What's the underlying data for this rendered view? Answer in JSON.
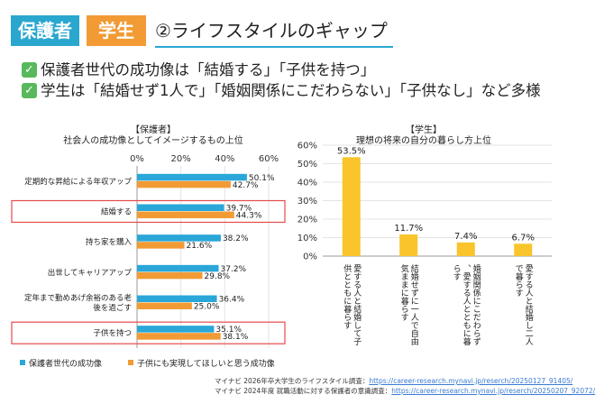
{
  "header": {
    "tag_parent": "保護者",
    "tag_student": "学生",
    "title": "②ライフスタイルのギャップ"
  },
  "bullets": [
    "保護者世代の成功像は「結婚する」「子供を持つ」",
    "学生は「結婚せず1人で」「婚姻関係にこだわらない」「子供なし」など多様"
  ],
  "chart_data": [
    {
      "type": "bar",
      "orientation": "horizontal",
      "label": "【保護者】",
      "title": "社会人の成功像としてイメージするもの上位",
      "xlim": [
        0,
        60
      ],
      "xticks": [
        "0%",
        "20%",
        "40%",
        "60%"
      ],
      "categories": [
        "定期的な昇給による年収アップ",
        "結婚する",
        "持ち家を購入",
        "出世してキャリアアップ",
        "定年まで勤めあげ余裕のある老後を過ごす",
        "子供を持つ"
      ],
      "highlighted": [
        "結婚する",
        "子供を持つ"
      ],
      "series": [
        {
          "name": "保護者世代の成功像",
          "color": "#2aa7d8",
          "values": [
            50.1,
            39.7,
            38.2,
            37.2,
            36.4,
            35.1
          ],
          "labels": [
            "50.1%",
            "39.7%",
            "38.2%",
            "37.2%",
            "36.4%",
            "35.1%"
          ]
        },
        {
          "name": "子供にも実現してほしいと思う成功像",
          "color": "#f29b35",
          "values": [
            42.7,
            44.3,
            21.6,
            29.8,
            25.0,
            38.1
          ],
          "labels": [
            "42.7%",
            "44.3%",
            "21.6%",
            "29.8%",
            "25.0%",
            "38.1%"
          ]
        }
      ]
    },
    {
      "type": "bar",
      "orientation": "vertical",
      "label": "【学生】",
      "title": "理想の将来の自分の暮らし方上位",
      "ylim": [
        0,
        60
      ],
      "yticks": [
        "0%",
        "10%",
        "20%",
        "30%",
        "40%",
        "50%",
        "60%"
      ],
      "categories": [
        "愛する人と結婚して子供とともに暮らす",
        "結婚せずに一人で自由気ままに暮らす",
        "婚姻関係にこだわらず、愛する人とともに暮らす",
        "愛する人と結婚し二人で暮らす"
      ],
      "color": "#f9c42c",
      "values": [
        53.5,
        11.7,
        7.4,
        6.7
      ],
      "labels": [
        "53.5%",
        "11.7%",
        "7.4%",
        "6.7%"
      ]
    }
  ],
  "sources": [
    {
      "text": "マイナビ 2026年卒大学生のライフスタイル調査：",
      "url": "https://career-research.mynavi.jp/reserch/20250127_91405/"
    },
    {
      "text": "マイナビ 2024年度 就職活動に対する保護者の意識調査：",
      "url": "https://career-research.mynavi.jp/reserch/20250207_92072/"
    }
  ]
}
